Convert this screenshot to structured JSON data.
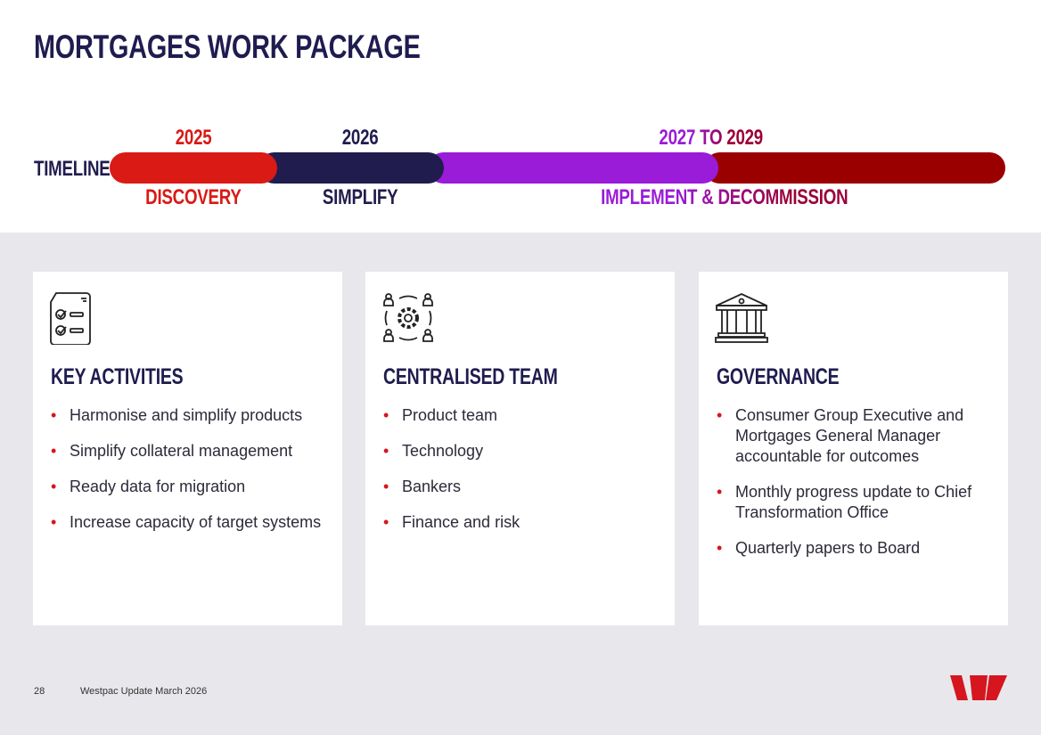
{
  "title": "MORTGAGES WORK PACKAGE",
  "timeline": {
    "label": "TIMELINE",
    "phases": [
      {
        "year": "2025",
        "name": "DISCOVERY",
        "color": "#d91a15"
      },
      {
        "year": "2026",
        "name": "SIMPLIFY",
        "color": "#201c4e"
      },
      {
        "year": "2027 TO 2029",
        "name": "IMPLEMENT & DECOMMISSION",
        "color": "#9a1bd8",
        "color2": "#9b0000"
      }
    ]
  },
  "cards": [
    {
      "icon": "checklist-icon",
      "title": "KEY ACTIVITIES",
      "items": [
        "Harmonise and simplify products",
        "Simplify collateral management",
        "Ready data for migration",
        "Increase capacity of target systems"
      ]
    },
    {
      "icon": "team-gear-icon",
      "title": "CENTRALISED TEAM",
      "items": [
        "Product team",
        "Technology",
        "Bankers",
        "Finance and risk"
      ]
    },
    {
      "icon": "bank-building-icon",
      "title": "GOVERNANCE",
      "items": [
        "Consumer Group Executive and Mortgages General Manager accountable for outcomes",
        "Monthly progress update to Chief Transformation Office",
        "Quarterly papers to Board"
      ]
    }
  ],
  "footer": {
    "page": "28",
    "text": "Westpac Update March 2026"
  },
  "brand": {
    "logo": "westpac-w-logo",
    "color": "#d5161e"
  }
}
